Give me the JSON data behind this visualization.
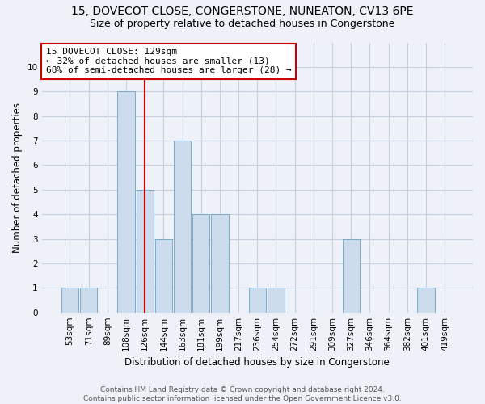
{
  "title_line1": "15, DOVECOT CLOSE, CONGERSTONE, NUNEATON, CV13 6PE",
  "title_line2": "Size of property relative to detached houses in Congerstone",
  "xlabel": "Distribution of detached houses by size in Congerstone",
  "ylabel": "Number of detached properties",
  "bin_labels": [
    "53sqm",
    "71sqm",
    "89sqm",
    "108sqm",
    "126sqm",
    "144sqm",
    "163sqm",
    "181sqm",
    "199sqm",
    "217sqm",
    "236sqm",
    "254sqm",
    "272sqm",
    "291sqm",
    "309sqm",
    "327sqm",
    "346sqm",
    "364sqm",
    "382sqm",
    "401sqm",
    "419sqm"
  ],
  "bar_heights": [
    1,
    1,
    0,
    9,
    5,
    3,
    7,
    4,
    4,
    0,
    1,
    1,
    0,
    0,
    0,
    3,
    0,
    0,
    0,
    1,
    0
  ],
  "bar_color": "#ccdcec",
  "bar_edgecolor": "#7aaac8",
  "subject_label": "15 DOVECOT CLOSE: 129sqm",
  "annotation_line1": "← 32% of detached houses are smaller (13)",
  "annotation_line2": "68% of semi-detached houses are larger (28) →",
  "vline_color": "#cc0000",
  "vline_x_index": 4.0,
  "ylim": [
    0,
    11
  ],
  "yticks": [
    0,
    1,
    2,
    3,
    4,
    5,
    6,
    7,
    8,
    9,
    10,
    11
  ],
  "footer_line1": "Contains HM Land Registry data © Crown copyright and database right 2024.",
  "footer_line2": "Contains public sector information licensed under the Open Government Licence v3.0.",
  "background_color": "#eef2f8",
  "plot_background_color": "#eef2f8",
  "grid_color": "#c5cfe0",
  "title_fontsize": 10,
  "subtitle_fontsize": 9,
  "axis_label_fontsize": 8.5,
  "tick_fontsize": 7.5,
  "annotation_fontsize": 8,
  "footer_fontsize": 6.5
}
